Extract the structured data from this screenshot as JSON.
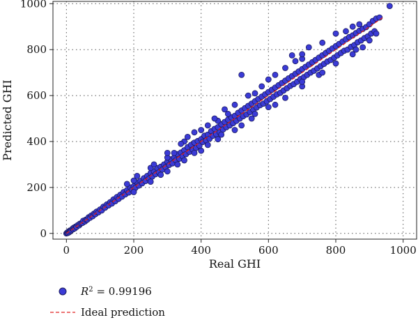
{
  "chart_data": {
    "type": "scatter",
    "xlabel": "Real GHI",
    "ylabel": "Predicted GHI",
    "xlim": [
      -40,
      1040
    ],
    "ylim": [
      -25,
      1010
    ],
    "xticks": [
      "0",
      "200",
      "400",
      "600",
      "800",
      "1000"
    ],
    "yticks": [
      "0",
      "200",
      "400",
      "600",
      "800",
      "1000"
    ],
    "grid": true,
    "legend_position": "below",
    "series": [
      {
        "name": "R² = 0.99196",
        "name_base": "R",
        "name_sup": "2",
        "name_rest": " = 0.99196",
        "kind": "scatter",
        "color": "#3b3bd6",
        "edge_color": "#1a1a5c",
        "points": [
          [
            0,
            0
          ],
          [
            2,
            3
          ],
          [
            4,
            2
          ],
          [
            6,
            8
          ],
          [
            8,
            5
          ],
          [
            10,
            12
          ],
          [
            12,
            10
          ],
          [
            15,
            14
          ],
          [
            18,
            20
          ],
          [
            20,
            18
          ],
          [
            22,
            25
          ],
          [
            25,
            22
          ],
          [
            28,
            30
          ],
          [
            30,
            28
          ],
          [
            34,
            36
          ],
          [
            38,
            35
          ],
          [
            40,
            42
          ],
          [
            44,
            44
          ],
          [
            48,
            46
          ],
          [
            50,
            55
          ],
          [
            55,
            52
          ],
          [
            58,
            60
          ],
          [
            62,
            60
          ],
          [
            66,
            70
          ],
          [
            70,
            68
          ],
          [
            74,
            78
          ],
          [
            78,
            75
          ],
          [
            82,
            86
          ],
          [
            86,
            84
          ],
          [
            90,
            95
          ],
          [
            95,
            92
          ],
          [
            100,
            104
          ],
          [
            105,
            100
          ],
          [
            110,
            116
          ],
          [
            115,
            112
          ],
          [
            120,
            126
          ],
          [
            125,
            122
          ],
          [
            130,
            136
          ],
          [
            135,
            130
          ],
          [
            140,
            148
          ],
          [
            145,
            140
          ],
          [
            150,
            158
          ],
          [
            155,
            150
          ],
          [
            160,
            168
          ],
          [
            165,
            160
          ],
          [
            170,
            180
          ],
          [
            175,
            170
          ],
          [
            180,
            188
          ],
          [
            185,
            178
          ],
          [
            190,
            200
          ],
          [
            195,
            190
          ],
          [
            200,
            205
          ],
          [
            205,
            198
          ],
          [
            210,
            222
          ],
          [
            215,
            208
          ],
          [
            220,
            228
          ],
          [
            225,
            218
          ],
          [
            230,
            240
          ],
          [
            235,
            228
          ],
          [
            240,
            250
          ],
          [
            245,
            238
          ],
          [
            250,
            262
          ],
          [
            255,
            248
          ],
          [
            260,
            270
          ],
          [
            265,
            258
          ],
          [
            270,
            284
          ],
          [
            275,
            266
          ],
          [
            280,
            290
          ],
          [
            285,
            278
          ],
          [
            290,
            300
          ],
          [
            295,
            288
          ],
          [
            300,
            312
          ],
          [
            305,
            298
          ],
          [
            310,
            322
          ],
          [
            315,
            305
          ],
          [
            320,
            330
          ],
          [
            325,
            318
          ],
          [
            330,
            345
          ],
          [
            335,
            325
          ],
          [
            340,
            352
          ],
          [
            345,
            336
          ],
          [
            350,
            362
          ],
          [
            355,
            345
          ],
          [
            360,
            375
          ],
          [
            365,
            355
          ],
          [
            370,
            385
          ],
          [
            375,
            365
          ],
          [
            380,
            395
          ],
          [
            385,
            372
          ],
          [
            390,
            402
          ],
          [
            395,
            382
          ],
          [
            400,
            410
          ],
          [
            405,
            398
          ],
          [
            410,
            425
          ],
          [
            415,
            405
          ],
          [
            420,
            430
          ],
          [
            425,
            412
          ],
          [
            430,
            445
          ],
          [
            435,
            425
          ],
          [
            440,
            455
          ],
          [
            445,
            432
          ],
          [
            450,
            462
          ],
          [
            455,
            440
          ],
          [
            460,
            475
          ],
          [
            465,
            452
          ],
          [
            470,
            485
          ],
          [
            475,
            462
          ],
          [
            480,
            495
          ],
          [
            485,
            470
          ],
          [
            490,
            505
          ],
          [
            495,
            480
          ],
          [
            500,
            512
          ],
          [
            505,
            490
          ],
          [
            510,
            525
          ],
          [
            515,
            500
          ],
          [
            520,
            535
          ],
          [
            525,
            510
          ],
          [
            530,
            545
          ],
          [
            535,
            518
          ],
          [
            540,
            555
          ],
          [
            545,
            528
          ],
          [
            550,
            565
          ],
          [
            555,
            538
          ],
          [
            560,
            575
          ],
          [
            565,
            548
          ],
          [
            570,
            585
          ],
          [
            575,
            558
          ],
          [
            580,
            595
          ],
          [
            585,
            565
          ],
          [
            590,
            605
          ],
          [
            595,
            575
          ],
          [
            600,
            615
          ],
          [
            605,
            585
          ],
          [
            610,
            625
          ],
          [
            615,
            595
          ],
          [
            620,
            635
          ],
          [
            625,
            605
          ],
          [
            630,
            645
          ],
          [
            635,
            612
          ],
          [
            640,
            655
          ],
          [
            645,
            622
          ],
          [
            650,
            665
          ],
          [
            655,
            632
          ],
          [
            660,
            675
          ],
          [
            665,
            642
          ],
          [
            670,
            685
          ],
          [
            675,
            650
          ],
          [
            680,
            695
          ],
          [
            685,
            660
          ],
          [
            690,
            705
          ],
          [
            695,
            672
          ],
          [
            700,
            715
          ],
          [
            705,
            680
          ],
          [
            710,
            725
          ],
          [
            715,
            690
          ],
          [
            720,
            735
          ],
          [
            725,
            700
          ],
          [
            730,
            745
          ],
          [
            735,
            708
          ],
          [
            740,
            755
          ],
          [
            745,
            718
          ],
          [
            750,
            765
          ],
          [
            755,
            728
          ],
          [
            760,
            775
          ],
          [
            765,
            738
          ],
          [
            770,
            785
          ],
          [
            775,
            748
          ],
          [
            780,
            795
          ],
          [
            785,
            755
          ],
          [
            790,
            805
          ],
          [
            795,
            765
          ],
          [
            800,
            815
          ],
          [
            805,
            775
          ],
          [
            810,
            825
          ],
          [
            815,
            785
          ],
          [
            820,
            835
          ],
          [
            825,
            795
          ],
          [
            830,
            845
          ],
          [
            835,
            800
          ],
          [
            840,
            855
          ],
          [
            845,
            812
          ],
          [
            850,
            862
          ],
          [
            855,
            820
          ],
          [
            860,
            872
          ],
          [
            865,
            832
          ],
          [
            870,
            882
          ],
          [
            875,
            840
          ],
          [
            880,
            890
          ],
          [
            885,
            850
          ],
          [
            890,
            898
          ],
          [
            895,
            858
          ],
          [
            900,
            910
          ],
          [
            905,
            870
          ],
          [
            910,
            925
          ],
          [
            915,
            880
          ],
          [
            920,
            935
          ],
          [
            930,
            940
          ],
          [
            960,
            990
          ],
          [
            200,
            230
          ],
          [
            250,
            285
          ],
          [
            300,
            330
          ],
          [
            350,
            400
          ],
          [
            400,
            450
          ],
          [
            450,
            490
          ],
          [
            500,
            560
          ],
          [
            520,
            690
          ],
          [
            560,
            610
          ],
          [
            600,
            670
          ],
          [
            650,
            720
          ],
          [
            670,
            775
          ],
          [
            700,
            760
          ],
          [
            720,
            810
          ],
          [
            800,
            870
          ],
          [
            830,
            880
          ],
          [
            850,
            900
          ],
          [
            870,
            910
          ],
          [
            480,
            520
          ],
          [
            440,
            500
          ],
          [
            360,
            420
          ],
          [
            300,
            350
          ],
          [
            260,
            300
          ],
          [
            210,
            250
          ],
          [
            180,
            215
          ],
          [
            320,
            350
          ],
          [
            420,
            470
          ],
          [
            540,
            600
          ],
          [
            620,
            690
          ],
          [
            680,
            750
          ],
          [
            760,
            830
          ],
          [
            700,
            780
          ],
          [
            580,
            640
          ],
          [
            470,
            540
          ],
          [
            380,
            440
          ],
          [
            340,
            390
          ],
          [
            300,
            270
          ],
          [
            350,
            318
          ],
          [
            400,
            360
          ],
          [
            450,
            410
          ],
          [
            500,
            450
          ],
          [
            550,
            500
          ],
          [
            600,
            550
          ],
          [
            650,
            590
          ],
          [
            700,
            640
          ],
          [
            750,
            690
          ],
          [
            800,
            740
          ],
          [
            850,
            780
          ],
          [
            880,
            810
          ],
          [
            900,
            840
          ],
          [
            920,
            870
          ],
          [
            620,
            560
          ],
          [
            520,
            470
          ],
          [
            420,
            385
          ],
          [
            330,
            300
          ],
          [
            250,
            225
          ],
          [
            200,
            180
          ],
          [
            760,
            700
          ],
          [
            860,
            800
          ],
          [
            700,
            660
          ],
          [
            560,
            520
          ],
          [
            460,
            430
          ],
          [
            380,
            350
          ],
          [
            280,
            255
          ]
        ]
      },
      {
        "name": "Ideal prediction",
        "kind": "line",
        "style": "dashed",
        "color": "#e02020",
        "x": [
          0,
          940
        ],
        "y": [
          0,
          940
        ]
      }
    ]
  }
}
